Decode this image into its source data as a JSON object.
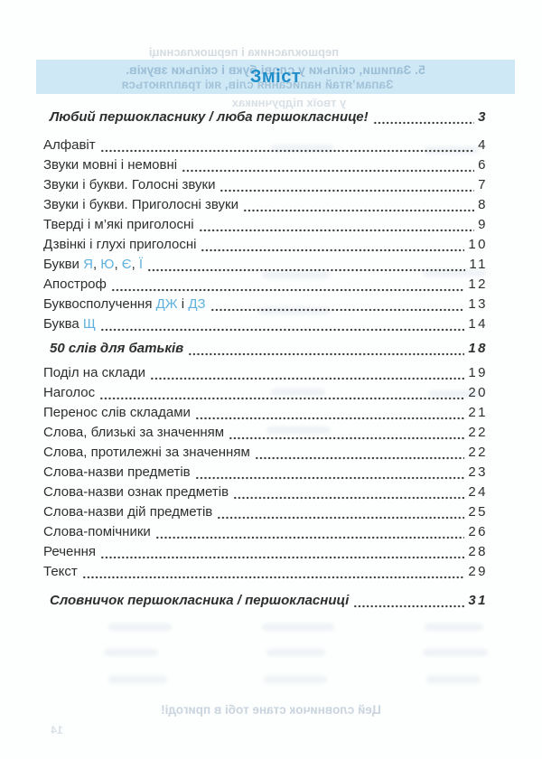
{
  "page": {
    "title": "Зміст",
    "title_color": "#1f8dc9",
    "band_color": "#cfe8f6",
    "accent_letter_color": "#5fb2de",
    "text_color": "#2e2e2e"
  },
  "toc": {
    "entries": [
      {
        "style": "intro",
        "parts": [
          {
            "text": "Любий першокласнику / люба першокласнице!"
          }
        ],
        "page": "3"
      },
      {
        "style": "item",
        "parts": [
          {
            "text": "Алфавіт"
          }
        ],
        "page": "4"
      },
      {
        "style": "item",
        "parts": [
          {
            "text": "Звуки мовні і немовні"
          }
        ],
        "page": "6"
      },
      {
        "style": "item",
        "parts": [
          {
            "text": "Звуки і букви. Голосні звуки"
          }
        ],
        "page": "7"
      },
      {
        "style": "item",
        "parts": [
          {
            "text": "Звуки і букви. Приголосні звуки"
          }
        ],
        "page": "8"
      },
      {
        "style": "item",
        "parts": [
          {
            "text": "Тверді і м’які приголосні"
          }
        ],
        "page": "9"
      },
      {
        "style": "item",
        "parts": [
          {
            "text": "Дзвінкі і глухі приголосні"
          }
        ],
        "page": "10"
      },
      {
        "style": "item",
        "parts": [
          {
            "text": "Букви "
          },
          {
            "text": "Я",
            "accent": true
          },
          {
            "text": ", "
          },
          {
            "text": "Ю",
            "accent": true
          },
          {
            "text": ", "
          },
          {
            "text": "Є",
            "accent": true
          },
          {
            "text": ", "
          },
          {
            "text": "Ї",
            "accent": true
          }
        ],
        "page": "11"
      },
      {
        "style": "item",
        "parts": [
          {
            "text": "Апостроф"
          }
        ],
        "page": "12"
      },
      {
        "style": "item",
        "parts": [
          {
            "text": "Буквосполучення "
          },
          {
            "text": "ДЖ",
            "accent": true
          },
          {
            "text": " і "
          },
          {
            "text": "ДЗ",
            "accent": true
          }
        ],
        "page": "13"
      },
      {
        "style": "item",
        "parts": [
          {
            "text": "Буква "
          },
          {
            "text": "Щ",
            "accent": true
          }
        ],
        "page": "14"
      },
      {
        "style": "section",
        "parts": [
          {
            "text": "50 слів для батьків"
          }
        ],
        "page": "18"
      },
      {
        "style": "item",
        "parts": [
          {
            "text": "Поділ на склади"
          }
        ],
        "page": "19"
      },
      {
        "style": "item",
        "parts": [
          {
            "text": "Наголос"
          }
        ],
        "page": "20"
      },
      {
        "style": "item",
        "parts": [
          {
            "text": "Перенос слів складами"
          }
        ],
        "page": "21"
      },
      {
        "style": "item",
        "parts": [
          {
            "text": "Слова, близькі за значенням"
          }
        ],
        "page": "22"
      },
      {
        "style": "item",
        "parts": [
          {
            "text": "Слова, протилежні за значенням"
          }
        ],
        "page": "22"
      },
      {
        "style": "item",
        "parts": [
          {
            "text": "Слова-назви предметів"
          }
        ],
        "page": "23"
      },
      {
        "style": "item",
        "parts": [
          {
            "text": "Слова-назви ознак предметів"
          }
        ],
        "page": "24"
      },
      {
        "style": "item",
        "parts": [
          {
            "text": "Слова-назви дій предметів"
          }
        ],
        "page": "25"
      },
      {
        "style": "item",
        "parts": [
          {
            "text": "Слова-помічники"
          }
        ],
        "page": "26"
      },
      {
        "style": "item",
        "parts": [
          {
            "text": "Речення"
          }
        ],
        "page": "28"
      },
      {
        "style": "item",
        "parts": [
          {
            "text": "Текст"
          }
        ],
        "page": "29"
      },
      {
        "style": "section section-last",
        "parts": [
          {
            "text": "Словничок першокласника / першокласниці"
          }
        ],
        "page": "31"
      }
    ]
  },
  "bleed_through": {
    "above_band": "першокласника і першокласниці",
    "band_line_1": "5. Запиши, скільки у слові букв і скільки звуків.",
    "band_line_2": "Запам’ятай написання слів, які трапляються",
    "below_band": "у твоїх підручниках",
    "bottom_line": "Цей словничок стане тобі в пригоді!",
    "bottom_page_number": "14"
  }
}
